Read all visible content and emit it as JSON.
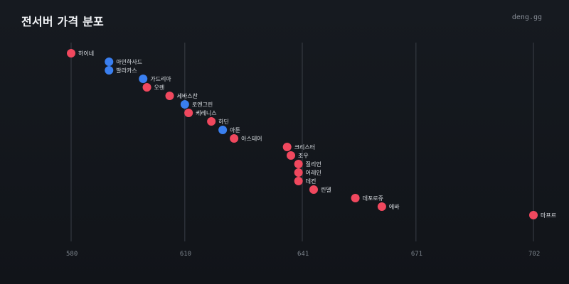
{
  "header": {
    "title": "전서버 가격 분포",
    "brand": "deng.gg"
  },
  "colors": {
    "red": "#f0485e",
    "blue": "#3a7ff0",
    "grid": "#3a3f47",
    "background": "#14171c"
  },
  "chart_data": {
    "type": "scatter",
    "title": "전서버 가격 분포",
    "xlabel": "",
    "ylabel": "",
    "xlim": [
      580,
      702
    ],
    "xticks": [
      580,
      610,
      641,
      671,
      702
    ],
    "grid": "vertical",
    "legend": "none",
    "points": [
      {
        "name": "하이네",
        "value": 580,
        "color": "red"
      },
      {
        "name": "아인하사드",
        "value": 590,
        "color": "blue"
      },
      {
        "name": "발라카스",
        "value": 590,
        "color": "blue"
      },
      {
        "name": "가드리아",
        "value": 599,
        "color": "blue"
      },
      {
        "name": "오렌",
        "value": 600,
        "color": "red"
      },
      {
        "name": "세바스찬",
        "value": 606,
        "color": "red"
      },
      {
        "name": "로엔그린",
        "value": 610,
        "color": "blue"
      },
      {
        "name": "케레니스",
        "value": 611,
        "color": "red"
      },
      {
        "name": "하딘",
        "value": 617,
        "color": "red"
      },
      {
        "name": "아툰",
        "value": 620,
        "color": "blue"
      },
      {
        "name": "아스테어",
        "value": 623,
        "color": "red"
      },
      {
        "name": "크리스터",
        "value": 637,
        "color": "red"
      },
      {
        "name": "조우",
        "value": 638,
        "color": "red"
      },
      {
        "name": "질리언",
        "value": 640,
        "color": "red"
      },
      {
        "name": "어레인",
        "value": 640,
        "color": "red"
      },
      {
        "name": "데컨",
        "value": 640,
        "color": "red"
      },
      {
        "name": "린델",
        "value": 644,
        "color": "red"
      },
      {
        "name": "데포로쥬",
        "value": 655,
        "color": "red"
      },
      {
        "name": "에바",
        "value": 662,
        "color": "red"
      },
      {
        "name": "마프르",
        "value": 702,
        "color": "red"
      }
    ]
  }
}
